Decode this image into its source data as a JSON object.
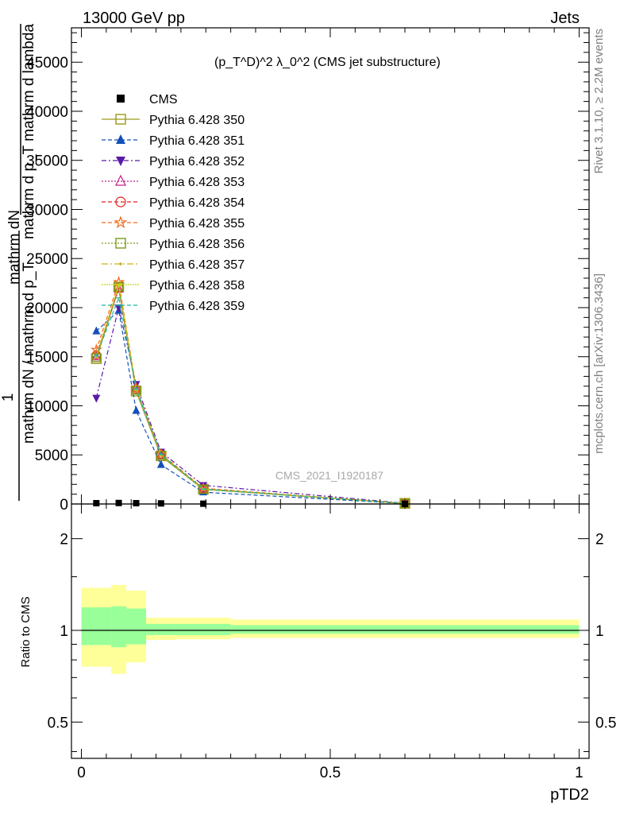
{
  "header": {
    "left": "13000 GeV pp",
    "right": "Jets"
  },
  "side_labels": {
    "rivet": "Rivet 3.1.10, ≥ 2.2M events",
    "mcplots": "mcplots.cern.ch [arXiv:1306.3436]"
  },
  "main_plot": {
    "title": "(p_T^D)^2 λ_0^2 (CMS jet substructure)",
    "watermark": "CMS_2021_I1920187",
    "ylabel_lines": [
      "mathrm dN",
      "mathrm d p_T mathrm d lambda",
      "1",
      "mathrm dN / mathrm d p_T"
    ],
    "yticks": [
      "0",
      "5000",
      "10000",
      "15000",
      "20000",
      "25000",
      "30000",
      "35000",
      "40000",
      "45000"
    ]
  },
  "ratio_plot": {
    "ylabel": "Ratio to CMS",
    "yticks": [
      "0.5",
      "1",
      "2"
    ],
    "xticks": [
      "0",
      "0.5",
      "1"
    ],
    "xlabel": "pTD2"
  },
  "legend": {
    "entries": [
      {
        "label": "CMS",
        "color": "#000000",
        "marker": "square-filled"
      },
      {
        "label": "Pythia 6.428 350",
        "color": "#9a9a1a",
        "marker": "square-open"
      },
      {
        "label": "Pythia 6.428 351",
        "color": "#1550b8",
        "marker": "triangle-up-filled"
      },
      {
        "label": "Pythia 6.428 352",
        "color": "#5a1aa8",
        "marker": "triangle-down-filled"
      },
      {
        "label": "Pythia 6.428 353",
        "color": "#c0208a",
        "marker": "triangle-up-open"
      },
      {
        "label": "Pythia 6.428 354",
        "color": "#e0201a",
        "marker": "circle-open"
      },
      {
        "label": "Pythia 6.428 355",
        "color": "#f06a1a",
        "marker": "star-open"
      },
      {
        "label": "Pythia 6.428 356",
        "color": "#7a9a1a",
        "marker": "square-open"
      },
      {
        "label": "Pythia 6.428 357",
        "color": "#c8b41a",
        "marker": "dot"
      },
      {
        "label": "Pythia 6.428 358",
        "color": "#c8d21a",
        "marker": "dot"
      },
      {
        "label": "Pythia 6.428 359",
        "color": "#1ab4a0",
        "marker": "dash"
      }
    ]
  },
  "chart_data": {
    "type": "line",
    "title": "(p_T^D)^2 λ_0^2 (CMS jet substructure)",
    "xlabel": "pTD2",
    "ylabel": "1 / (mathrm dN / mathrm d p_T) mathrm dN / (mathrm d p_T mathrm d lambda)",
    "xlim": [
      -0.02,
      1.02
    ],
    "ylim": [
      0,
      48500
    ],
    "ratio_ylim_log": [
      0.38,
      2.6
    ],
    "x": [
      0.03,
      0.075,
      0.11,
      0.16,
      0.245,
      0.65
    ],
    "cms": {
      "x": [
        0.03,
        0.075,
        0.11,
        0.16,
        0.245,
        0.65
      ],
      "values": [
        80,
        100,
        80,
        60,
        30,
        8
      ]
    },
    "series": [
      {
        "name": "Pythia 6.428 350",
        "values": [
          14800,
          22100,
          11500,
          4900,
          1500,
          60
        ]
      },
      {
        "name": "Pythia 6.428 351",
        "values": [
          17600,
          19700,
          9500,
          4000,
          1200,
          50
        ]
      },
      {
        "name": "Pythia 6.428 352",
        "values": [
          10800,
          20000,
          12200,
          5300,
          1900,
          80
        ]
      },
      {
        "name": "Pythia 6.428 353",
        "values": [
          15000,
          21900,
          11800,
          5000,
          1550,
          60
        ]
      },
      {
        "name": "Pythia 6.428 354",
        "values": [
          15200,
          22000,
          11700,
          5050,
          1550,
          60
        ]
      },
      {
        "name": "Pythia 6.428 355",
        "values": [
          15700,
          22600,
          11800,
          5100,
          1600,
          60
        ]
      },
      {
        "name": "Pythia 6.428 356",
        "values": [
          14900,
          22100,
          11600,
          4950,
          1500,
          60
        ]
      },
      {
        "name": "Pythia 6.428 357",
        "values": [
          15100,
          22200,
          11700,
          5000,
          1520,
          60
        ]
      },
      {
        "name": "Pythia 6.428 358",
        "values": [
          15000,
          22300,
          11650,
          5000,
          1520,
          60
        ]
      },
      {
        "name": "Pythia 6.428 359",
        "values": [
          15050,
          21000,
          11700,
          5020,
          1520,
          60
        ]
      }
    ],
    "ratio_bands": [
      {
        "xlo": 0.0,
        "xhi": 0.06,
        "inner": [
          0.895,
          1.19
        ],
        "outer": [
          0.76,
          1.38
        ]
      },
      {
        "xlo": 0.06,
        "xhi": 0.09,
        "inner": [
          0.88,
          1.2
        ],
        "outer": [
          0.72,
          1.41
        ]
      },
      {
        "xlo": 0.09,
        "xhi": 0.13,
        "inner": [
          0.9,
          1.18
        ],
        "outer": [
          0.785,
          1.35
        ]
      },
      {
        "xlo": 0.13,
        "xhi": 0.19,
        "inner": [
          0.965,
          1.05
        ],
        "outer": [
          0.93,
          1.1
        ]
      },
      {
        "xlo": 0.19,
        "xhi": 0.3,
        "inner": [
          0.965,
          1.05
        ],
        "outer": [
          0.935,
          1.1
        ]
      },
      {
        "xlo": 0.3,
        "xhi": 1.0,
        "inner": [
          0.975,
          1.04
        ],
        "outer": [
          0.945,
          1.085
        ]
      }
    ]
  }
}
